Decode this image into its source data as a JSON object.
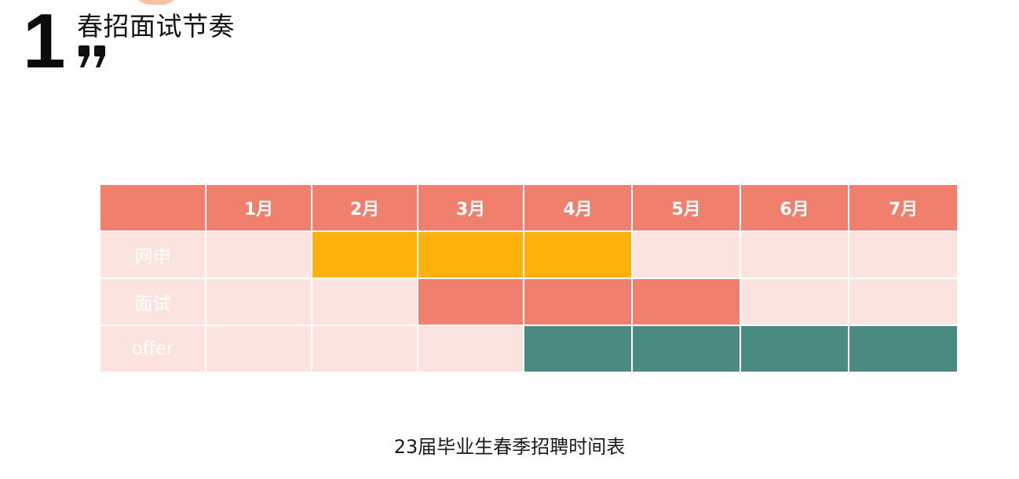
{
  "header": {
    "number": "1",
    "title": "春招面试节奏"
  },
  "colors": {
    "accent": "#f07f6e",
    "cell_background": "#fbe4df",
    "applications": "#fdb10d",
    "interviews": "#f07f6e",
    "offers": "#4b8a80",
    "decor_circle": "#f6c19e"
  },
  "table": {
    "months": [
      "1月",
      "2月",
      "3月",
      "4月",
      "5月",
      "6月",
      "7月"
    ],
    "rows": [
      {
        "label": "网申",
        "color": "#fdb10d",
        "active": [
          false,
          true,
          true,
          true,
          false,
          false,
          false
        ]
      },
      {
        "label": "面试",
        "color": "#f07f6e",
        "active": [
          false,
          false,
          true,
          true,
          true,
          false,
          false
        ]
      },
      {
        "label": "offer",
        "color": "#4b8a80",
        "active": [
          false,
          false,
          false,
          true,
          true,
          true,
          true
        ]
      }
    ]
  },
  "caption": "23届毕业生春季招聘时间表"
}
